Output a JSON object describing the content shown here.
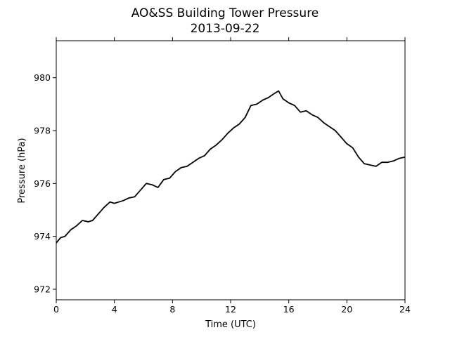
{
  "chart_data": {
    "type": "line",
    "title": "AO&SS Building Tower Pressure",
    "subtitle": "2013-09-22",
    "xlabel": "Time (UTC)",
    "ylabel": "Pressure (hPa)",
    "xlim": [
      0,
      24
    ],
    "ylim": [
      971.6,
      981.4
    ],
    "xticks": [
      0,
      4,
      8,
      12,
      16,
      20,
      24
    ],
    "yticks": [
      972,
      974,
      976,
      978,
      980
    ],
    "grid": false,
    "legend": "none",
    "line_color": "#000000",
    "series": [
      {
        "x": [
          0.0,
          0.3,
          0.6,
          1.0,
          1.4,
          1.8,
          2.2,
          2.5,
          2.9,
          3.3,
          3.7,
          4.0,
          4.3,
          4.6,
          5.0,
          5.4,
          5.8,
          6.2,
          6.6,
          7.0,
          7.4,
          7.8,
          8.2,
          8.6,
          9.0,
          9.4,
          9.8,
          10.2,
          10.6,
          11.0,
          11.4,
          11.8,
          12.2,
          12.6,
          13.0,
          13.4,
          13.8,
          14.2,
          14.6,
          15.0,
          15.3,
          15.6,
          16.0,
          16.4,
          16.8,
          17.2,
          17.6,
          18.0,
          18.4,
          18.8,
          19.2,
          19.6,
          20.0,
          20.4,
          20.8,
          21.2,
          21.6,
          22.0,
          22.4,
          22.8,
          23.2,
          23.6,
          24.0
        ],
        "values": [
          973.75,
          973.95,
          974.0,
          974.25,
          974.4,
          974.6,
          974.55,
          974.6,
          974.85,
          975.1,
          975.3,
          975.25,
          975.3,
          975.35,
          975.45,
          975.5,
          975.75,
          976.0,
          975.95,
          975.85,
          976.15,
          976.2,
          976.45,
          976.6,
          976.65,
          976.8,
          976.95,
          977.05,
          977.3,
          977.45,
          977.65,
          977.9,
          978.1,
          978.25,
          978.5,
          978.95,
          979.0,
          979.15,
          979.25,
          979.4,
          979.5,
          979.2,
          979.05,
          978.95,
          978.7,
          978.75,
          978.6,
          978.5,
          978.3,
          978.15,
          978.0,
          977.75,
          977.5,
          977.35,
          977.0,
          976.75,
          976.7,
          976.65,
          976.8,
          976.8,
          976.85,
          976.95,
          977.0
        ]
      }
    ]
  }
}
